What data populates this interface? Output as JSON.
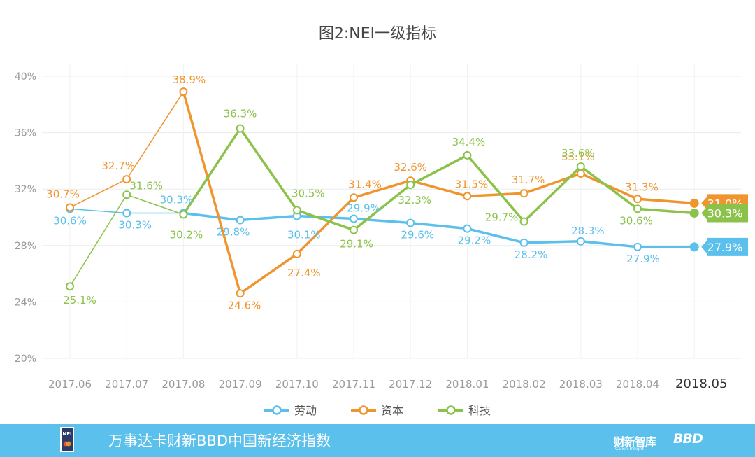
{
  "chart_data": {
    "type": "line",
    "title": "图2:NEI一级指标",
    "categories": [
      "2017.06",
      "2017.07",
      "2017.08",
      "2017.09",
      "2017.10",
      "2017.11",
      "2017.12",
      "2018.01",
      "2018.02",
      "2018.03",
      "2018.04",
      "2018.05"
    ],
    "y_ticks": [
      "20%",
      "24%",
      "28%",
      "32%",
      "36%",
      "40%"
    ],
    "ylim": [
      20,
      40
    ],
    "grid": true,
    "legend_position": "bottom",
    "series": [
      {
        "name": "劳动",
        "color": "#5bc0eb",
        "values": [
          30.6,
          30.3,
          30.3,
          29.8,
          30.1,
          29.9,
          29.6,
          29.2,
          28.2,
          28.3,
          27.9,
          27.9
        ],
        "labels": [
          "30.6%",
          "30.3%",
          "30.3%",
          "29.8%",
          "30.1%",
          "29.9%",
          "29.6%",
          "29.2%",
          "28.2%",
          "28.3%",
          "27.9%",
          "27.9%"
        ]
      },
      {
        "name": "资本",
        "color": "#f0952e",
        "values": [
          30.7,
          32.7,
          38.9,
          24.6,
          27.4,
          31.4,
          32.6,
          31.5,
          31.7,
          33.1,
          31.3,
          31.0
        ],
        "labels": [
          "30.7%",
          "32.7%",
          "38.9%",
          "24.6%",
          "27.4%",
          "31.4%",
          "32.6%",
          "31.5%",
          "31.7%",
          "33.1%",
          "31.3%",
          "31.0%"
        ]
      },
      {
        "name": "科技",
        "color": "#8bc34a",
        "values": [
          25.1,
          31.6,
          30.2,
          36.3,
          30.5,
          29.1,
          32.3,
          34.4,
          29.7,
          33.6,
          30.6,
          30.3
        ],
        "labels": [
          "25.1%",
          "31.6%",
          "30.2%",
          "36.3%",
          "30.5%",
          "29.1%",
          "32.3%",
          "34.4%",
          "29.7%",
          "33.6%",
          "30.6%",
          "30.3%"
        ]
      }
    ]
  },
  "footer": {
    "text": "万事达卡财新BBD中国新经济指数",
    "brand_caixin": "财新智库",
    "brand_caixin_sub": "Caixin Insight",
    "brand_bbd": "BBD",
    "logo_text": "NEI",
    "background": "#5bc0eb"
  }
}
